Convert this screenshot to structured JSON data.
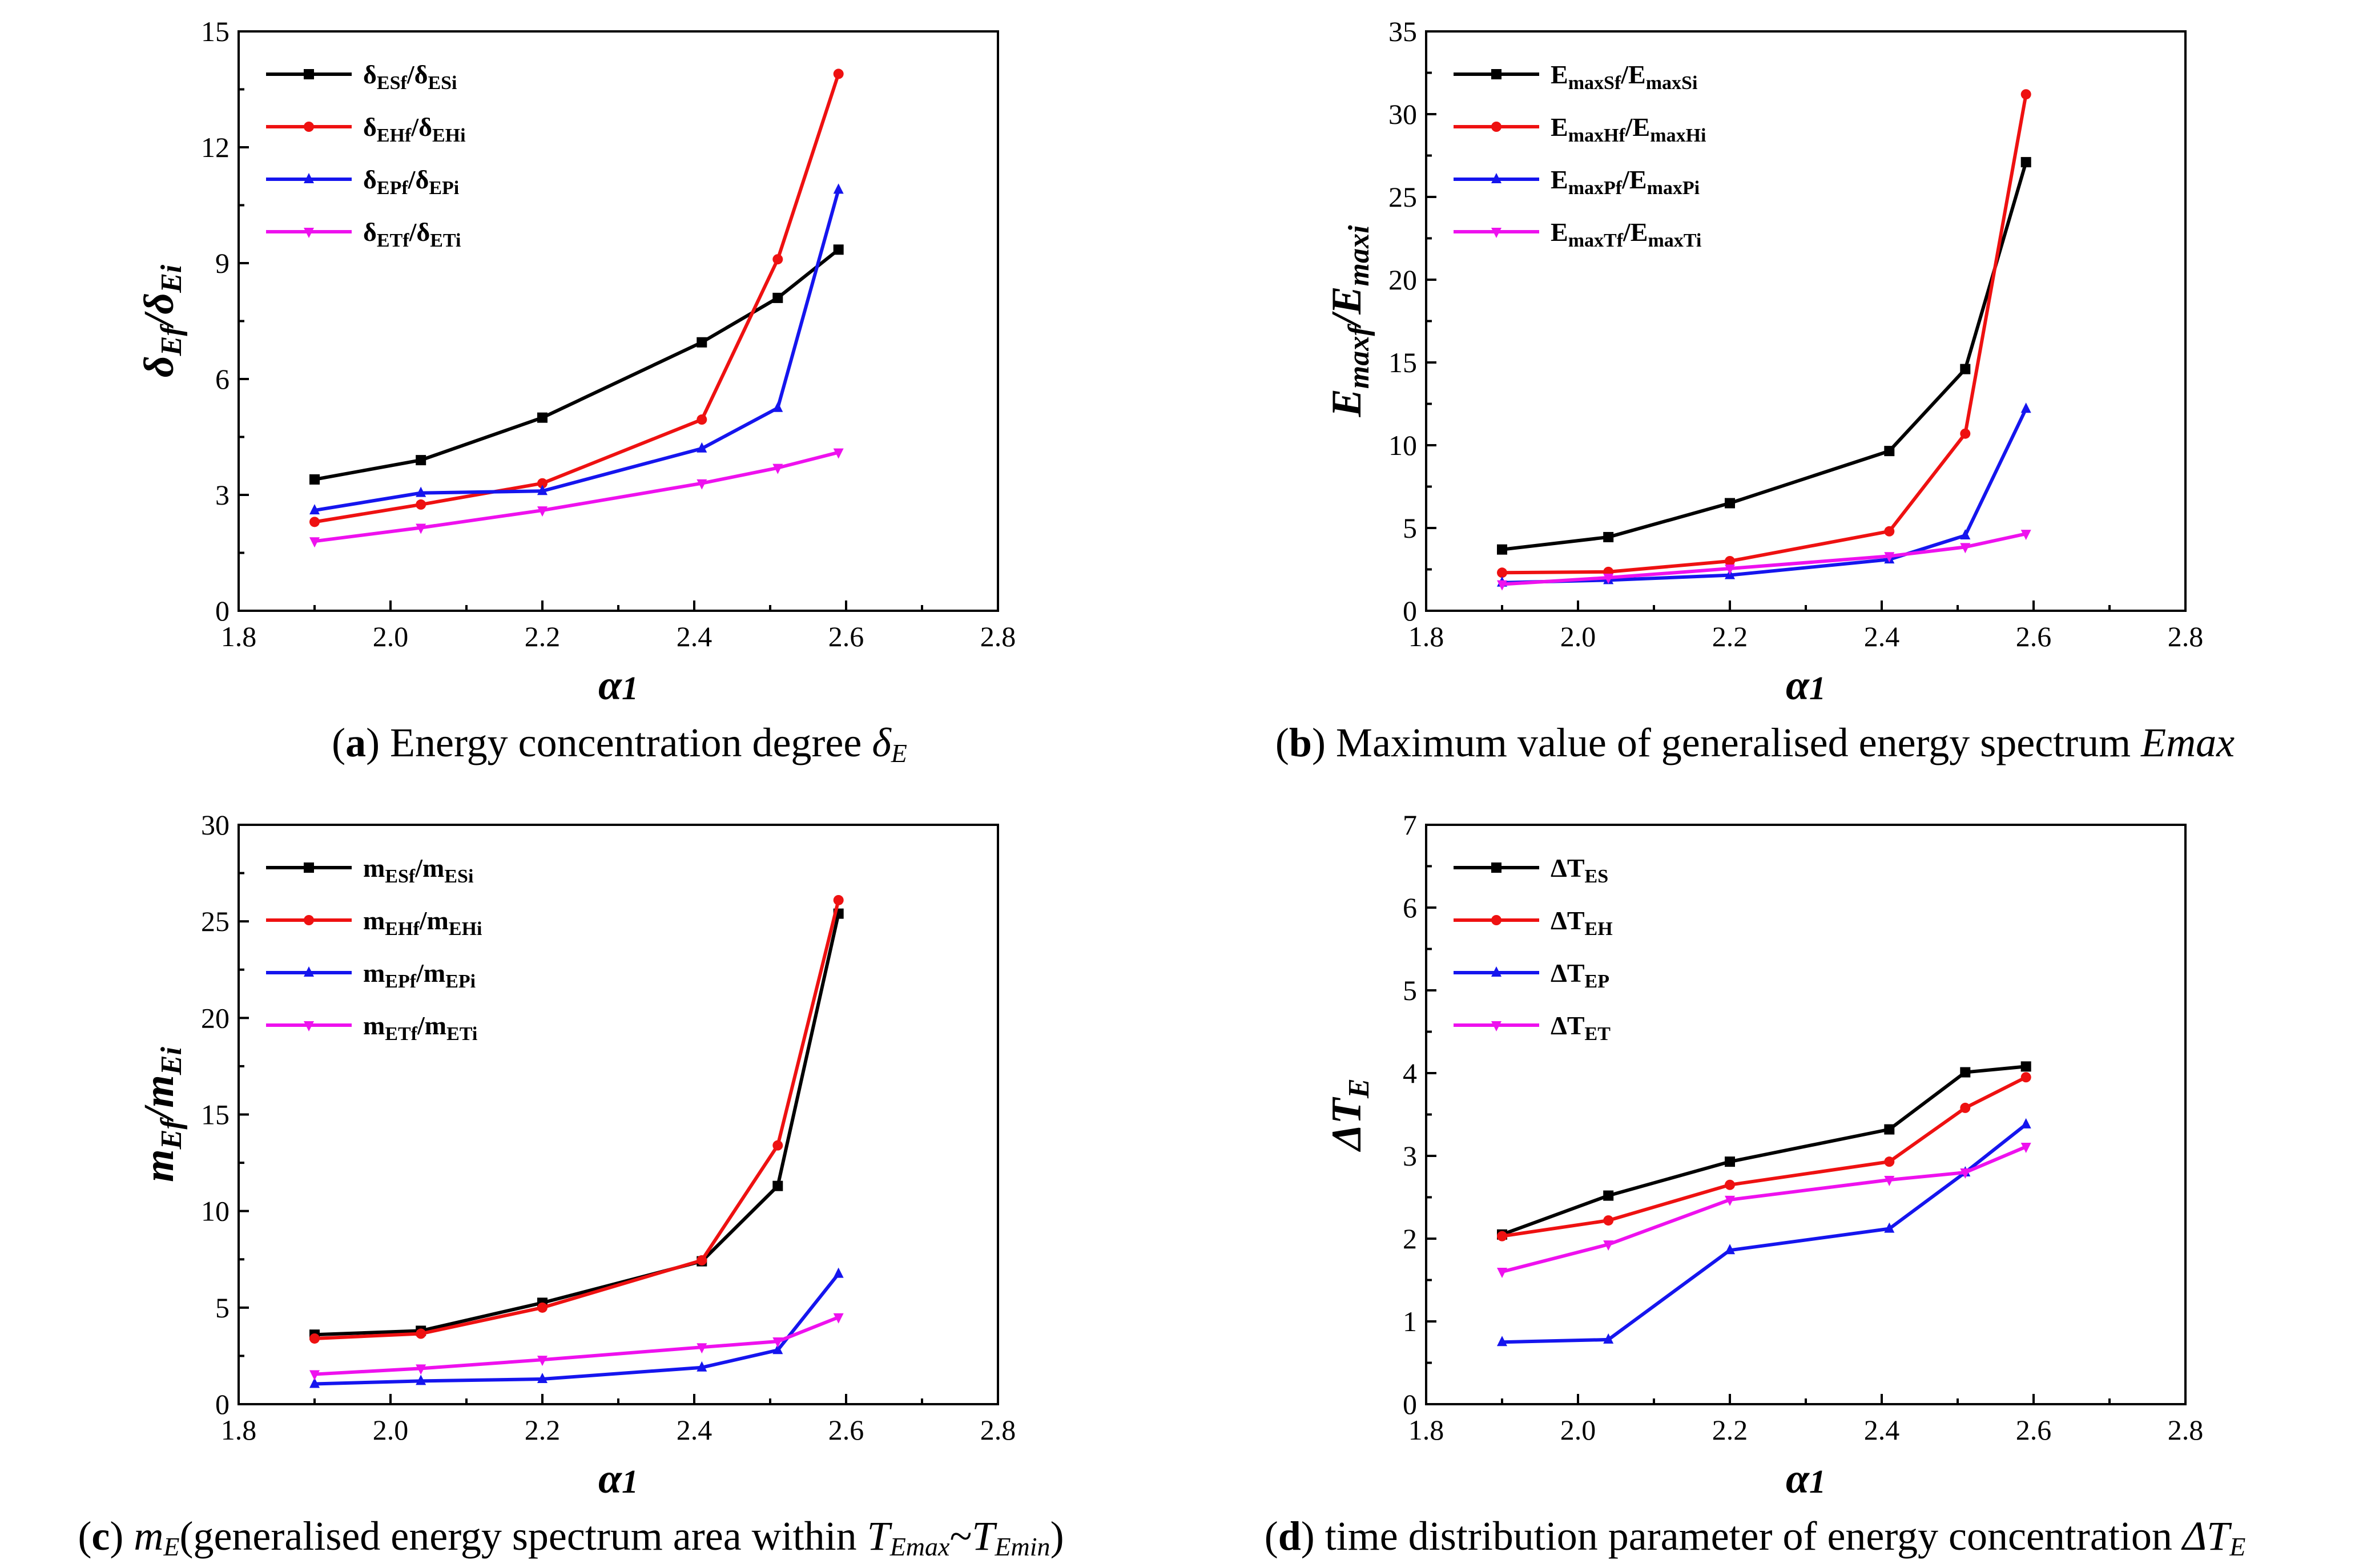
{
  "figure": {
    "colors": {
      "black": "#000000",
      "red": "#ee1111",
      "blue": "#1515ee",
      "magenta": "#ee11ee"
    }
  },
  "chart_data": [
    {
      "id": "a",
      "type": "line",
      "caption": {
        "letter": "a",
        "text": " Energy concentration degree ",
        "symbol": "δ",
        "sub": "E"
      },
      "xlabel": {
        "main": "α",
        "sub": "1"
      },
      "ylabel": {
        "main": "δ",
        "sub1": "Ef",
        "mid": "/δ",
        "sub2": "Ei"
      },
      "xlim": [
        1.8,
        2.8
      ],
      "xticks": [
        "1.8",
        "2.0",
        "2.2",
        "2.4",
        "2.6",
        "2.8"
      ],
      "ylim": [
        0,
        15
      ],
      "yticks": [
        "0",
        "3",
        "6",
        "9",
        "12",
        "15"
      ],
      "x": [
        1.9,
        2.04,
        2.2,
        2.41,
        2.51,
        2.59
      ],
      "series": [
        {
          "name": "δESf/δESi",
          "legend": {
            "s1": "δ",
            "b1": "ESf",
            "s2": "/δ",
            "b2": "ESi"
          },
          "color": "#000000",
          "marker": "square",
          "values": [
            3.4,
            3.9,
            5.0,
            6.95,
            8.1,
            9.35
          ]
        },
        {
          "name": "δEHf/δEHi",
          "legend": {
            "s1": "δ",
            "b1": "EHf",
            "s2": "/δ",
            "b2": "EHi"
          },
          "color": "#ee1111",
          "marker": "circle",
          "values": [
            2.3,
            2.75,
            3.3,
            4.95,
            9.1,
            13.9
          ]
        },
        {
          "name": "δEPf/δEPi",
          "legend": {
            "s1": "δ",
            "b1": "EPf",
            "s2": "/δ",
            "b2": "EPi"
          },
          "color": "#1515ee",
          "marker": "triangle-up",
          "values": [
            2.6,
            3.05,
            3.1,
            4.2,
            5.25,
            10.9
          ]
        },
        {
          "name": "δETf/δETi",
          "legend": {
            "s1": "δ",
            "b1": "ETf",
            "s2": "/δ",
            "b2": "ETi"
          },
          "color": "#ee11ee",
          "marker": "triangle-down",
          "values": [
            1.8,
            2.15,
            2.6,
            3.3,
            3.7,
            4.1
          ]
        }
      ]
    },
    {
      "id": "b",
      "type": "line",
      "caption": {
        "letter": "b",
        "text": " Maximum value of generalised energy spectrum ",
        "symbol": "Emax",
        "sub": ""
      },
      "xlabel": {
        "main": "α",
        "sub": "1"
      },
      "ylabel": {
        "main": "E",
        "sub1": "maxf",
        "mid": "/E",
        "sub2": "maxi"
      },
      "xlim": [
        1.8,
        2.8
      ],
      "xticks": [
        "1.8",
        "2.0",
        "2.2",
        "2.4",
        "2.6",
        "2.8"
      ],
      "ylim": [
        0,
        35
      ],
      "yticks": [
        "0",
        "5",
        "10",
        "15",
        "20",
        "25",
        "30",
        "35"
      ],
      "x": [
        1.9,
        2.04,
        2.2,
        2.41,
        2.51,
        2.59
      ],
      "series": [
        {
          "name": "EmaxSf/EmaxSi",
          "legend": {
            "s1": "E",
            "b1": "maxSf",
            "s2": "/E",
            "b2": "maxSi"
          },
          "color": "#000000",
          "marker": "square",
          "values": [
            3.7,
            4.45,
            6.5,
            9.65,
            14.6,
            27.1
          ]
        },
        {
          "name": "EmaxHf/EmaxHi",
          "legend": {
            "s1": "E",
            "b1": "maxHf",
            "s2": "/E",
            "b2": "maxHi"
          },
          "color": "#ee1111",
          "marker": "circle",
          "values": [
            2.3,
            2.35,
            3.0,
            4.8,
            10.7,
            31.2
          ]
        },
        {
          "name": "EmaxPf/EmaxPi",
          "legend": {
            "s1": "E",
            "b1": "maxPf",
            "s2": "/E",
            "b2": "maxPi"
          },
          "color": "#1515ee",
          "marker": "triangle-up",
          "values": [
            1.7,
            1.85,
            2.15,
            3.1,
            4.55,
            12.2
          ]
        },
        {
          "name": "EmaxTf/EmaxTi",
          "legend": {
            "s1": "E",
            "b1": "maxTf",
            "s2": "/E",
            "b2": "maxTi"
          },
          "color": "#ee11ee",
          "marker": "triangle-down",
          "values": [
            1.6,
            2.0,
            2.55,
            3.3,
            3.85,
            4.65
          ]
        }
      ]
    },
    {
      "id": "c",
      "type": "line",
      "caption": {
        "letter": "c",
        "text": "(generalised energy spectrum area within ",
        "symbol": "m",
        "sub": "E",
        "t1": "T",
        "t1sub": "Emax",
        "tilde": "~",
        "t2": "T",
        "t2sub": "Emin",
        "close": ")"
      },
      "xlabel": {
        "main": "α",
        "sub": "1"
      },
      "ylabel": {
        "main": "m",
        "sub1": "Ef",
        "mid": "/m",
        "sub2": "Ei"
      },
      "xlim": [
        1.8,
        2.8
      ],
      "xticks": [
        "1.8",
        "2.0",
        "2.2",
        "2.4",
        "2.6",
        "2.8"
      ],
      "ylim": [
        0,
        30
      ],
      "yticks": [
        "0",
        "5",
        "10",
        "15",
        "20",
        "25",
        "30"
      ],
      "x": [
        1.9,
        2.04,
        2.2,
        2.41,
        2.51,
        2.59
      ],
      "series": [
        {
          "name": "mESf/mESi",
          "legend": {
            "s1": "m",
            "b1": "ESf",
            "s2": "/m",
            "b2": "ESi"
          },
          "color": "#000000",
          "marker": "square",
          "values": [
            3.6,
            3.8,
            5.25,
            7.4,
            11.3,
            25.4
          ]
        },
        {
          "name": "mEHf/mEHi",
          "legend": {
            "s1": "m",
            "b1": "EHf",
            "s2": "/m",
            "b2": "EHi"
          },
          "color": "#ee1111",
          "marker": "circle",
          "values": [
            3.4,
            3.65,
            5.0,
            7.45,
            13.4,
            26.1
          ]
        },
        {
          "name": "mEPf/mEPi",
          "legend": {
            "s1": "m",
            "b1": "EPf",
            "s2": "/m",
            "b2": "EPi"
          },
          "color": "#1515ee",
          "marker": "triangle-up",
          "values": [
            1.05,
            1.2,
            1.3,
            1.9,
            2.8,
            6.75
          ]
        },
        {
          "name": "mETf/mETi",
          "legend": {
            "s1": "m",
            "b1": "ETf",
            "s2": "/m",
            "b2": "ETi"
          },
          "color": "#ee11ee",
          "marker": "triangle-down",
          "values": [
            1.55,
            1.85,
            2.3,
            2.95,
            3.25,
            4.5
          ]
        }
      ]
    },
    {
      "id": "d",
      "type": "line",
      "caption": {
        "letter": "d",
        "text": " time distribution parameter of energy concentration ",
        "symbol": "ΔT",
        "sub": "E"
      },
      "xlabel": {
        "main": "α",
        "sub": "1"
      },
      "ylabel": {
        "main": "ΔT",
        "sub1": "E",
        "mid": "",
        "sub2": ""
      },
      "xlim": [
        1.8,
        2.8
      ],
      "xticks": [
        "1.8",
        "2.0",
        "2.2",
        "2.4",
        "2.6",
        "2.8"
      ],
      "ylim": [
        0,
        7
      ],
      "yticks": [
        "0",
        "1",
        "2",
        "3",
        "4",
        "5",
        "6",
        "7"
      ],
      "x": [
        1.9,
        2.04,
        2.2,
        2.41,
        2.51,
        2.59
      ],
      "series": [
        {
          "name": "ΔTES",
          "legend": {
            "s1": "ΔT",
            "b1": "ES",
            "s2": "",
            "b2": ""
          },
          "color": "#000000",
          "marker": "square",
          "values": [
            2.05,
            2.52,
            2.93,
            3.32,
            4.01,
            4.08
          ]
        },
        {
          "name": "ΔTEH",
          "legend": {
            "s1": "ΔT",
            "b1": "EH",
            "s2": "",
            "b2": ""
          },
          "color": "#ee1111",
          "marker": "circle",
          "values": [
            2.03,
            2.22,
            2.65,
            2.93,
            3.58,
            3.95
          ]
        },
        {
          "name": "ΔTEP",
          "legend": {
            "s1": "ΔT",
            "b1": "EP",
            "s2": "",
            "b2": ""
          },
          "color": "#1515ee",
          "marker": "triangle-up",
          "values": [
            0.75,
            0.78,
            1.86,
            2.12,
            2.8,
            3.38
          ]
        },
        {
          "name": "ΔTET",
          "legend": {
            "s1": "ΔT",
            "b1": "ET",
            "s2": "",
            "b2": ""
          },
          "color": "#ee11ee",
          "marker": "triangle-down",
          "values": [
            1.6,
            1.93,
            2.47,
            2.71,
            2.8,
            3.11
          ]
        }
      ]
    }
  ]
}
